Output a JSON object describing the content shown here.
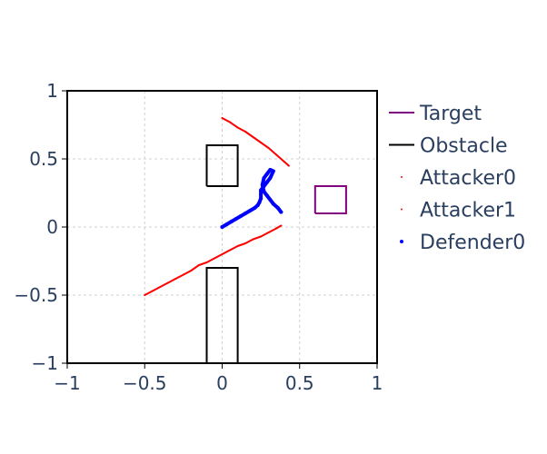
{
  "chart_data": {
    "type": "line",
    "title": "",
    "xlabel": "",
    "ylabel": "",
    "xlim": [
      -1,
      1
    ],
    "ylim": [
      -1,
      1
    ],
    "xticks": [
      -1,
      -0.5,
      0,
      0.5,
      1
    ],
    "yticks": [
      -1,
      -0.5,
      0,
      0.5,
      1
    ],
    "xtick_labels": [
      "−1",
      "−0.5",
      "0",
      "0.5",
      "1"
    ],
    "ytick_labels": [
      "−1",
      "−0.5",
      "0",
      "0.5",
      "1"
    ],
    "grid": true,
    "legend_position": "right",
    "series": [
      {
        "name": "Target",
        "color": "#800080",
        "mode": "lines",
        "x": [
          0.6,
          0.8,
          0.8,
          0.6,
          0.6
        ],
        "y": [
          0.1,
          0.1,
          0.3,
          0.3,
          0.1
        ]
      },
      {
        "name": "Obstacle",
        "color": "#000000",
        "mode": "lines",
        "x": [
          -0.1,
          0.1,
          0.1,
          -0.1,
          -0.1
        ],
        "y": [
          0.3,
          0.3,
          0.6,
          0.6,
          0.3
        ]
      },
      {
        "name": "",
        "color": "#000000",
        "mode": "lines",
        "x": [
          -0.1,
          0.1,
          0.1,
          -0.1,
          -0.1
        ],
        "y": [
          -1.0,
          -1.0,
          -0.3,
          -0.3,
          -1.0
        ]
      },
      {
        "name": "Attacker0",
        "color": "#ff0000",
        "mode": "markers",
        "x": [
          0.0,
          0.05,
          0.1,
          0.15,
          0.2,
          0.25,
          0.3,
          0.35,
          0.4,
          0.43
        ],
        "y": [
          0.8,
          0.77,
          0.73,
          0.7,
          0.66,
          0.62,
          0.58,
          0.53,
          0.48,
          0.45
        ]
      },
      {
        "name": "Attacker1",
        "color": "#ff0000",
        "mode": "markers",
        "x": [
          -0.5,
          -0.45,
          -0.4,
          -0.35,
          -0.3,
          -0.25,
          -0.2,
          -0.15,
          -0.1,
          -0.05,
          0.0,
          0.05,
          0.1,
          0.15,
          0.2,
          0.25,
          0.3,
          0.35,
          0.38
        ],
        "y": [
          -0.5,
          -0.47,
          -0.44,
          -0.41,
          -0.38,
          -0.35,
          -0.32,
          -0.28,
          -0.26,
          -0.23,
          -0.2,
          -0.17,
          -0.14,
          -0.12,
          -0.09,
          -0.07,
          -0.04,
          -0.01,
          0.01
        ]
      },
      {
        "name": "Defender0",
        "color": "#0000ff",
        "mode": "markers",
        "x": [
          0.0,
          0.03,
          0.06,
          0.09,
          0.12,
          0.15,
          0.18,
          0.21,
          0.23,
          0.24,
          0.25,
          0.25,
          0.25,
          0.27,
          0.29,
          0.31,
          0.33,
          0.31,
          0.29,
          0.27,
          0.26,
          0.27,
          0.29,
          0.31,
          0.33,
          0.36,
          0.38
        ],
        "y": [
          0.0,
          0.02,
          0.04,
          0.06,
          0.08,
          0.1,
          0.12,
          0.14,
          0.16,
          0.18,
          0.21,
          0.24,
          0.27,
          0.3,
          0.33,
          0.36,
          0.41,
          0.42,
          0.39,
          0.36,
          0.31,
          0.26,
          0.23,
          0.2,
          0.17,
          0.14,
          0.11
        ]
      }
    ]
  },
  "legend": {
    "entries": [
      {
        "label": "Target",
        "color": "#800080",
        "style": "line"
      },
      {
        "label": "Obstacle",
        "color": "#000000",
        "style": "line"
      },
      {
        "label": "Attacker0",
        "color": "#ff0000",
        "style": "dot"
      },
      {
        "label": "Attacker1",
        "color": "#ff0000",
        "style": "dot"
      },
      {
        "label": "Defender0",
        "color": "#0000ff",
        "style": "dot"
      }
    ]
  }
}
